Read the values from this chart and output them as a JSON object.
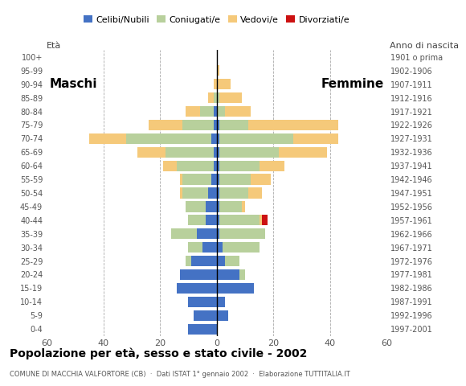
{
  "age_groups": [
    "0-4",
    "5-9",
    "10-14",
    "15-19",
    "20-24",
    "25-29",
    "30-34",
    "35-39",
    "40-44",
    "45-49",
    "50-54",
    "55-59",
    "60-64",
    "65-69",
    "70-74",
    "75-79",
    "80-84",
    "85-89",
    "90-94",
    "95-99",
    "100+"
  ],
  "birth_years": [
    "1997-2001",
    "1992-1996",
    "1987-1991",
    "1982-1986",
    "1977-1981",
    "1972-1976",
    "1967-1971",
    "1962-1966",
    "1957-1961",
    "1952-1956",
    "1947-1951",
    "1942-1946",
    "1937-1941",
    "1932-1936",
    "1927-1931",
    "1922-1926",
    "1917-1921",
    "1912-1916",
    "1907-1911",
    "1902-1906",
    "1901 o prima"
  ],
  "males": {
    "celibe": [
      10,
      8,
      10,
      14,
      13,
      9,
      5,
      7,
      4,
      4,
      3,
      2,
      1,
      1,
      2,
      1,
      1,
      0,
      0,
      0,
      0
    ],
    "coniugato": [
      0,
      0,
      0,
      0,
      0,
      2,
      5,
      9,
      6,
      7,
      9,
      10,
      13,
      17,
      30,
      11,
      5,
      1,
      0,
      0,
      0
    ],
    "vedovo": [
      0,
      0,
      0,
      0,
      0,
      0,
      0,
      0,
      0,
      0,
      1,
      1,
      5,
      10,
      13,
      12,
      5,
      2,
      1,
      0,
      0
    ],
    "divorziato": [
      0,
      0,
      0,
      0,
      0,
      0,
      0,
      0,
      0,
      0,
      0,
      0,
      0,
      0,
      0,
      0,
      0,
      0,
      0,
      0,
      0
    ]
  },
  "females": {
    "celibe": [
      0,
      4,
      3,
      13,
      8,
      3,
      2,
      1,
      1,
      1,
      1,
      1,
      1,
      1,
      1,
      1,
      0,
      0,
      0,
      0,
      0
    ],
    "coniugato": [
      0,
      0,
      0,
      0,
      2,
      5,
      13,
      16,
      14,
      8,
      10,
      11,
      14,
      21,
      26,
      10,
      3,
      1,
      0,
      0,
      0
    ],
    "vedovo": [
      0,
      0,
      0,
      0,
      0,
      0,
      0,
      0,
      1,
      1,
      5,
      7,
      9,
      17,
      16,
      32,
      9,
      8,
      5,
      1,
      0
    ],
    "divorziato": [
      0,
      0,
      0,
      0,
      0,
      0,
      0,
      0,
      2,
      0,
      0,
      0,
      0,
      0,
      0,
      0,
      0,
      0,
      0,
      0,
      0
    ]
  },
  "colors": {
    "celibe": "#4472c4",
    "coniugato": "#b8d09c",
    "vedovo": "#f5c97a",
    "divorziato": "#cc1111"
  },
  "legend_labels": [
    "Celibi/Nubili",
    "Coniugati/e",
    "Vedovi/e",
    "Divorziati/e"
  ],
  "title": "Popolazione per età, sesso e stato civile - 2002",
  "subtitle": "COMUNE DI MACCHIA VALFORTORE (CB)  ·  Dati ISTAT 1° gennaio 2002  ·  Elaborazione TUTTITALIA.IT",
  "xlabel_left": "Maschi",
  "xlabel_right": "Femmine",
  "xlim": 60,
  "bg_color": "#ffffff",
  "grid_color": "#aaaaaa"
}
